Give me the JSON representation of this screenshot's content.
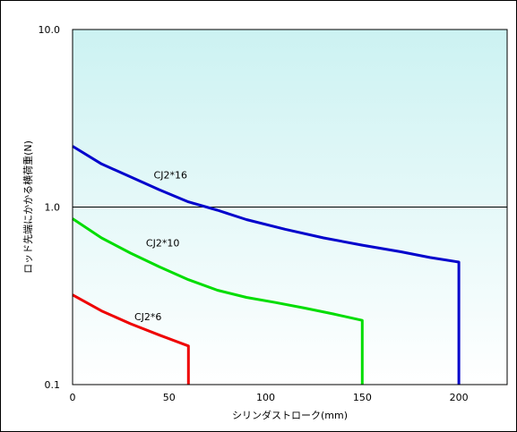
{
  "chart_data": {
    "type": "line",
    "title": "",
    "xlabel": "シリンダストローク(mm)",
    "ylabel": "ロッド先端にかかる横荷重(N)",
    "xlim": [
      0,
      225
    ],
    "ylim": [
      0.1,
      10.0
    ],
    "yscale": "log",
    "x_ticks": [
      0,
      50,
      100,
      150,
      200
    ],
    "x_tick_labels": [
      "0",
      "50",
      "100",
      "150",
      "200"
    ],
    "y_ticks": [
      0.1,
      1.0,
      10.0
    ],
    "y_tick_labels": [
      "0.1",
      "1.0",
      "10.0"
    ],
    "grid": "horizontal at 1.0",
    "legend": "none",
    "background_gradient": [
      "#ffffff",
      "#ccf2f2"
    ],
    "series": [
      {
        "name": "CJ2*16",
        "color": "#0000cc",
        "x": [
          0,
          15,
          30,
          45,
          60,
          75,
          90,
          110,
          130,
          150,
          170,
          185,
          200,
          200
        ],
        "y": [
          2.2,
          1.75,
          1.48,
          1.25,
          1.07,
          0.96,
          0.85,
          0.75,
          0.67,
          0.61,
          0.56,
          0.52,
          0.49,
          0.1
        ]
      },
      {
        "name": "CJ2*10",
        "color": "#00dd00",
        "x": [
          0,
          15,
          30,
          45,
          60,
          75,
          90,
          105,
          120,
          135,
          150,
          150
        ],
        "y": [
          0.86,
          0.67,
          0.55,
          0.46,
          0.39,
          0.34,
          0.31,
          0.29,
          0.27,
          0.25,
          0.23,
          0.1
        ]
      },
      {
        "name": "CJ2*6",
        "color": "#ee0000",
        "x": [
          0,
          15,
          30,
          45,
          60,
          60
        ],
        "y": [
          0.32,
          0.26,
          0.22,
          0.19,
          0.165,
          0.1
        ]
      }
    ],
    "annotations": [
      {
        "text": "CJ2*16",
        "x": 42,
        "y": 1.45
      },
      {
        "text": "CJ2*10",
        "x": 38,
        "y": 0.6
      },
      {
        "text": "CJ2*6",
        "x": 32,
        "y": 0.23
      }
    ]
  }
}
